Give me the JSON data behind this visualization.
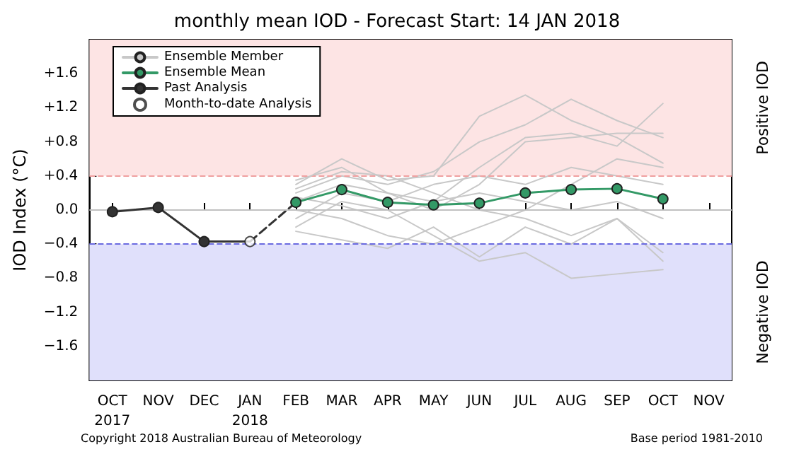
{
  "chart_data": {
    "type": "line",
    "title": "monthly mean IOD - Forecast Start: 14 JAN 2018",
    "ylabel": "IOD Index (°C)",
    "categories": [
      "OCT\n2017",
      "NOV",
      "DEC",
      "JAN\n2018",
      "FEB",
      "MAR",
      "APR",
      "MAY",
      "JUN",
      "JUL",
      "AUG",
      "SEP",
      "OCT",
      "NOV"
    ],
    "ylim": [
      -2.0,
      2.0
    ],
    "yticks": [
      {
        "value": -1.6,
        "label": "−1.6"
      },
      {
        "value": -1.2,
        "label": "−1.2"
      },
      {
        "value": -0.8,
        "label": "−0.8"
      },
      {
        "value": -0.4,
        "label": "−0.4"
      },
      {
        "value": 0,
        "label": "0.0"
      },
      {
        "value": 0.4,
        "label": "+0.4"
      },
      {
        "value": 0.8,
        "label": "+0.8"
      },
      {
        "value": 1.2,
        "label": "+1.2"
      },
      {
        "value": 1.6,
        "label": "+1.6"
      }
    ],
    "grid": false,
    "legend": "top left",
    "bands": [
      {
        "axis": "y",
        "from": 0.4,
        "to": 2.0,
        "label": "Positive IOD",
        "color": "#fde4e4"
      },
      {
        "axis": "y",
        "from": -2.0,
        "to": -0.4,
        "label": "Negative IOD",
        "color": "#e0e0fb"
      }
    ],
    "ref_lines": [
      {
        "axis": "y",
        "value": 0.4,
        "color": "#f0a0a0",
        "line_style": "dashed"
      },
      {
        "axis": "y",
        "value": -0.4,
        "color": "#6a6ae0",
        "line_style": "dashed"
      },
      {
        "axis": "y",
        "value": 0,
        "color": "#c0c0c0",
        "line_style": "solid"
      }
    ],
    "annotations": [
      "Copyright 2018 Australian Bureau of Meteorology",
      "Base period 1981-2010"
    ],
    "series": [
      {
        "name": "Ensemble Member",
        "color": "#c8c8c8",
        "marker": "none",
        "values": [
          null,
          null,
          null,
          null,
          0.3,
          0.6,
          0.35,
          0.4,
          1.1,
          1.35,
          1.05,
          0.85,
          0.55,
          null
        ]
      },
      {
        "color": "#c8c8c8",
        "marker": "none",
        "values": [
          null,
          null,
          null,
          null,
          -0.2,
          0.1,
          0.0,
          -0.3,
          -0.6,
          -0.5,
          -0.8,
          -0.75,
          -0.7,
          null
        ]
      },
      {
        "color": "#c8c8c8",
        "marker": "none",
        "values": [
          null,
          null,
          null,
          null,
          0.2,
          0.4,
          0.3,
          0.45,
          0.8,
          1.0,
          1.3,
          1.05,
          0.85,
          null
        ]
      },
      {
        "color": "#c8c8c8",
        "marker": "none",
        "values": [
          null,
          null,
          null,
          null,
          0.0,
          -0.1,
          -0.3,
          -0.4,
          -0.2,
          0.0,
          0.3,
          0.6,
          0.5,
          null
        ]
      },
      {
        "color": "#c8c8c8",
        "marker": "none",
        "values": [
          null,
          null,
          null,
          null,
          0.35,
          0.5,
          0.2,
          0.1,
          0.5,
          0.85,
          0.9,
          0.75,
          1.25,
          null
        ]
      },
      {
        "color": "#c8c8c8",
        "marker": "none",
        "values": [
          null,
          null,
          null,
          null,
          -0.25,
          -0.35,
          -0.45,
          -0.2,
          -0.55,
          -0.2,
          -0.4,
          -0.1,
          -0.6,
          null
        ]
      },
      {
        "color": "#c8c8c8",
        "marker": "none",
        "values": [
          null,
          null,
          null,
          null,
          0.1,
          0.3,
          0.2,
          0.0,
          0.3,
          0.8,
          0.85,
          0.9,
          0.9,
          null
        ]
      },
      {
        "color": "#c8c8c8",
        "marker": "none",
        "values": [
          null,
          null,
          null,
          null,
          0.15,
          0.05,
          -0.1,
          0.1,
          0.2,
          0.1,
          0.0,
          0.1,
          -0.1,
          null
        ]
      },
      {
        "color": "#c8c8c8",
        "marker": "none",
        "values": [
          null,
          null,
          null,
          null,
          0.25,
          0.45,
          0.4,
          0.2,
          0.0,
          -0.1,
          -0.3,
          -0.1,
          -0.5,
          null
        ]
      },
      {
        "color": "#c8c8c8",
        "marker": "none",
        "values": [
          null,
          null,
          null,
          null,
          -0.1,
          0.2,
          0.1,
          0.3,
          0.4,
          0.3,
          0.5,
          0.4,
          0.3,
          null
        ]
      },
      {
        "name": "Ensemble Mean",
        "color": "#339966",
        "marker": "circle",
        "values": [
          null,
          null,
          null,
          null,
          0.09,
          0.24,
          0.09,
          0.06,
          0.08,
          0.2,
          0.24,
          0.25,
          0.13,
          null
        ]
      },
      {
        "color": "#333333",
        "marker": "none",
        "values": [
          null,
          null,
          -0.37,
          -0.37,
          null,
          null,
          null,
          null,
          null,
          null,
          null,
          null,
          null,
          null
        ]
      },
      {
        "color": "#333333",
        "marker": "none",
        "line_style": "dashed",
        "values": [
          null,
          null,
          null,
          -0.37,
          0.09,
          null,
          null,
          null,
          null,
          null,
          null,
          null,
          null,
          null
        ]
      },
      {
        "name": "Past Analysis",
        "color": "#333333",
        "marker": "circle",
        "values": [
          -0.02,
          0.03,
          -0.37,
          null,
          null,
          null,
          null,
          null,
          null,
          null,
          null,
          null,
          null,
          null
        ]
      },
      {
        "name": "Month-to-date Analysis",
        "type": "scatter",
        "color": "#ffffff",
        "marker": "circle",
        "values": [
          null,
          null,
          null,
          -0.37,
          null,
          null,
          null,
          null,
          null,
          null,
          null,
          null,
          null,
          null
        ]
      }
    ]
  }
}
